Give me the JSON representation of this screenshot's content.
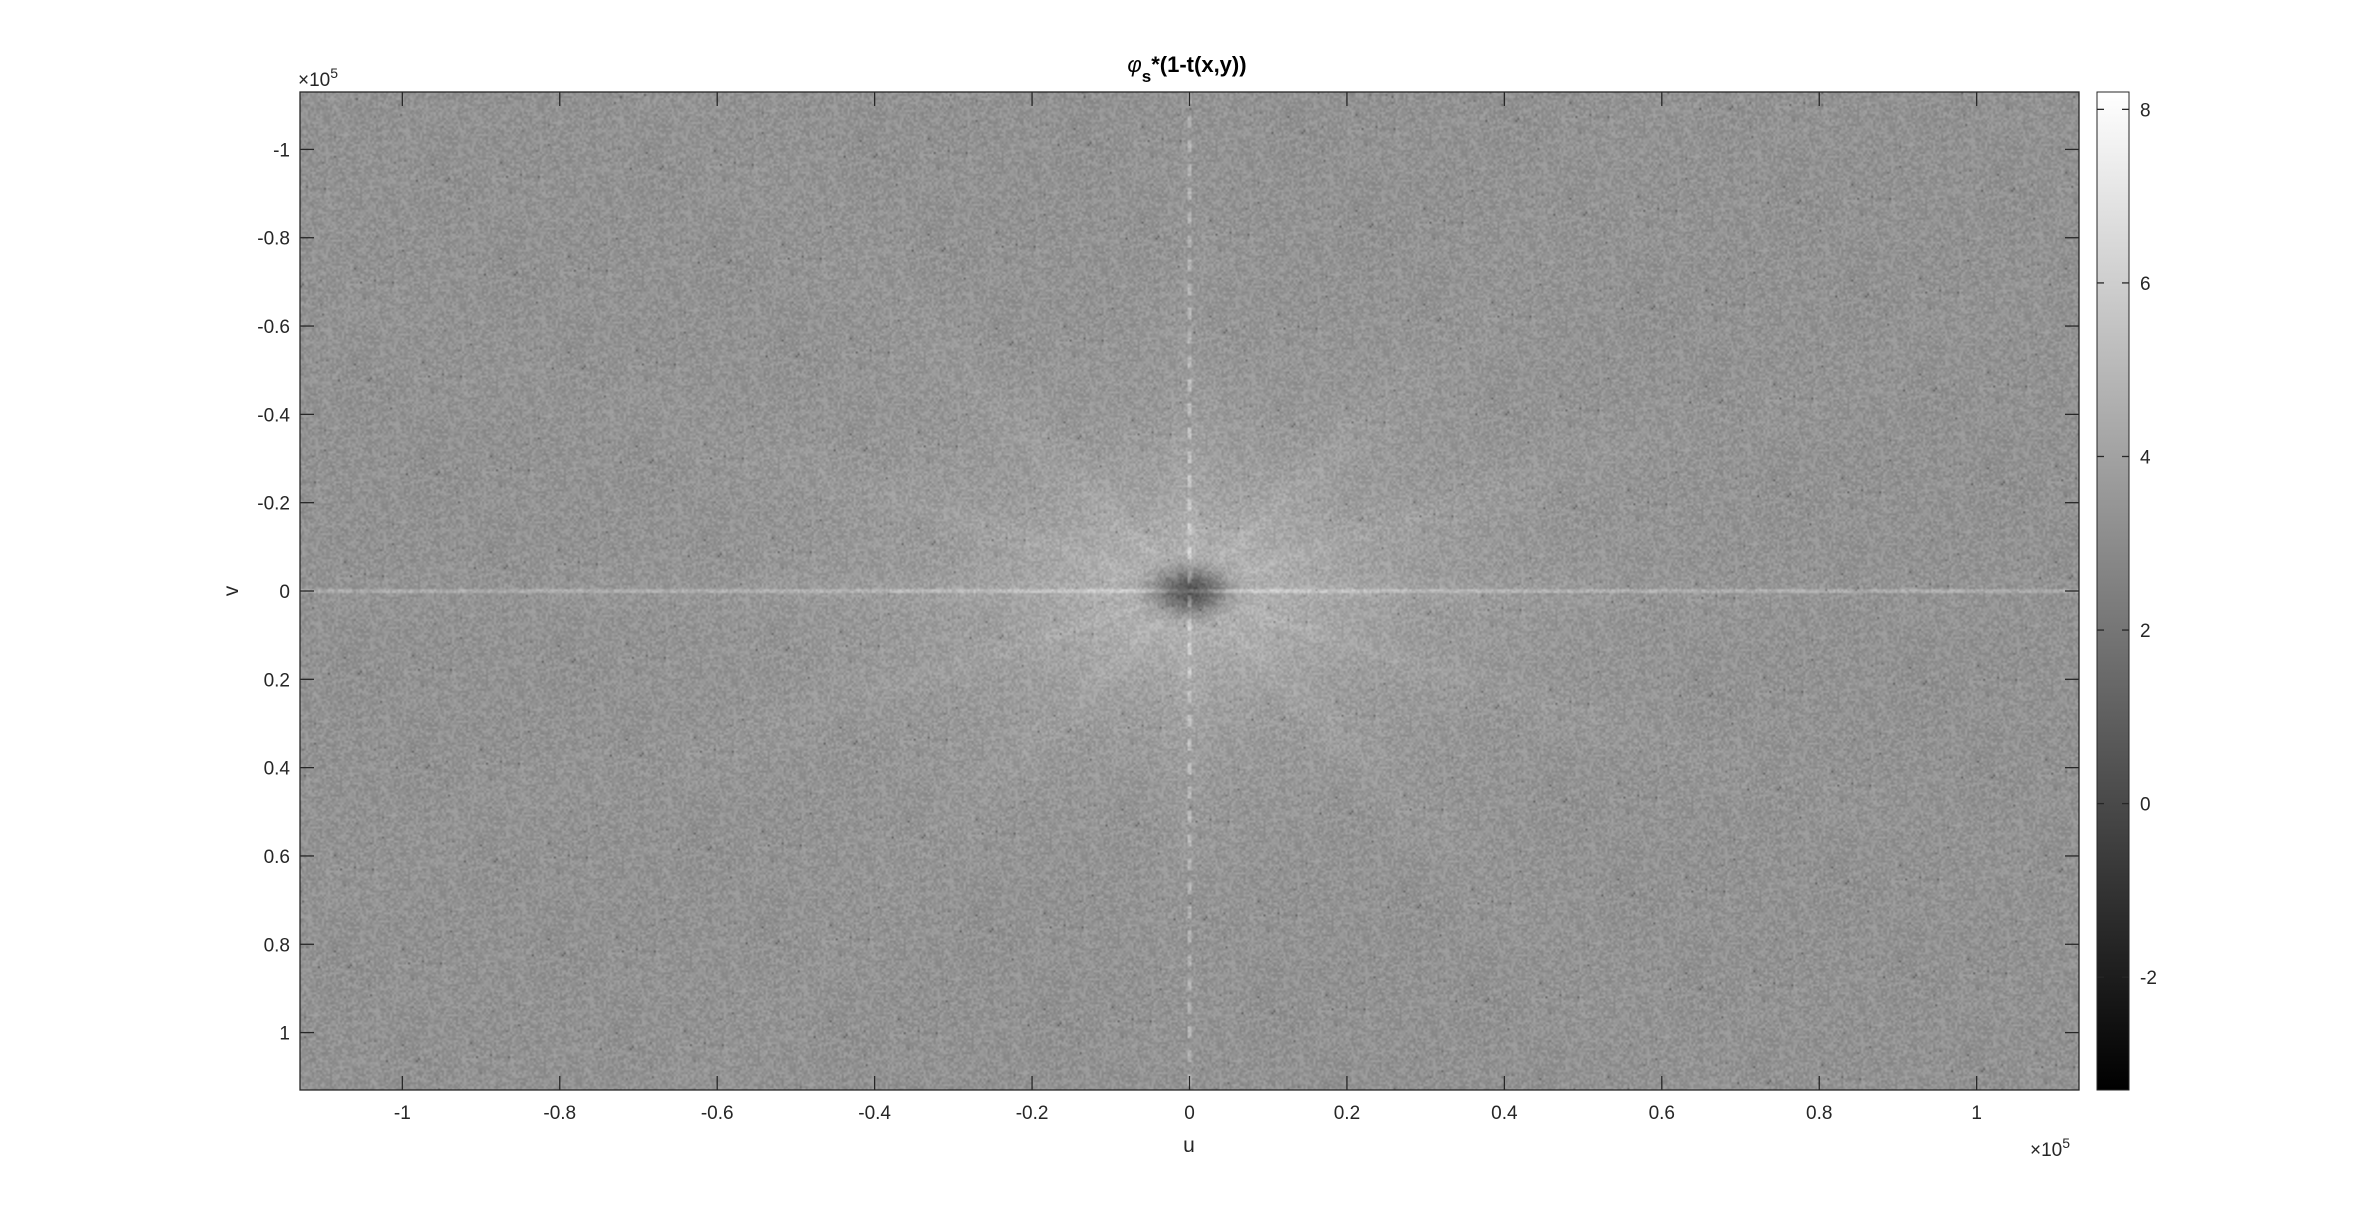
{
  "chart_data": {
    "type": "heatmap",
    "title": {
      "symbol": "φ",
      "subscript": "s",
      "rest": "*(1-t(x,y))"
    },
    "xlabel": "u",
    "ylabel": "v",
    "xlim": [
      -113000,
      113000
    ],
    "ylim": [
      -113000,
      113000
    ],
    "y_direction": "reverse",
    "colormap": "gray",
    "x_exponent": {
      "base": "×10",
      "power": "5"
    },
    "y_exponent": {
      "base": "×10",
      "power": "5"
    },
    "x_ticks": [
      {
        "value": -100000,
        "label": "-1"
      },
      {
        "value": -80000,
        "label": "-0.8"
      },
      {
        "value": -60000,
        "label": "-0.6"
      },
      {
        "value": -40000,
        "label": "-0.4"
      },
      {
        "value": -20000,
        "label": "-0.2"
      },
      {
        "value": 0,
        "label": "0"
      },
      {
        "value": 20000,
        "label": "0.2"
      },
      {
        "value": 40000,
        "label": "0.4"
      },
      {
        "value": 60000,
        "label": "0.6"
      },
      {
        "value": 80000,
        "label": "0.8"
      },
      {
        "value": 100000,
        "label": "1"
      }
    ],
    "y_ticks": [
      {
        "value": -100000,
        "label": "-1"
      },
      {
        "value": -80000,
        "label": "-0.8"
      },
      {
        "value": -60000,
        "label": "-0.6"
      },
      {
        "value": -40000,
        "label": "-0.4"
      },
      {
        "value": -20000,
        "label": "-0.2"
      },
      {
        "value": 0,
        "label": "0"
      },
      {
        "value": 20000,
        "label": "0.2"
      },
      {
        "value": 40000,
        "label": "0.4"
      },
      {
        "value": 60000,
        "label": "0.6"
      },
      {
        "value": 80000,
        "label": "0.8"
      },
      {
        "value": 100000,
        "label": "1"
      }
    ],
    "colorbar": {
      "range": [
        -3.3,
        8.2
      ],
      "ticks": [
        {
          "value": -2,
          "label": "-2"
        },
        {
          "value": 0,
          "label": "0"
        },
        {
          "value": 2,
          "label": "2"
        },
        {
          "value": 4,
          "label": "4"
        },
        {
          "value": 6,
          "label": "6"
        },
        {
          "value": 8,
          "label": "8"
        }
      ]
    },
    "image_features": {
      "background_level": 3.3,
      "center_dark_spot_value": 0.5,
      "center_halo_value": 5.5,
      "axis_streak_value": 4.5
    }
  }
}
